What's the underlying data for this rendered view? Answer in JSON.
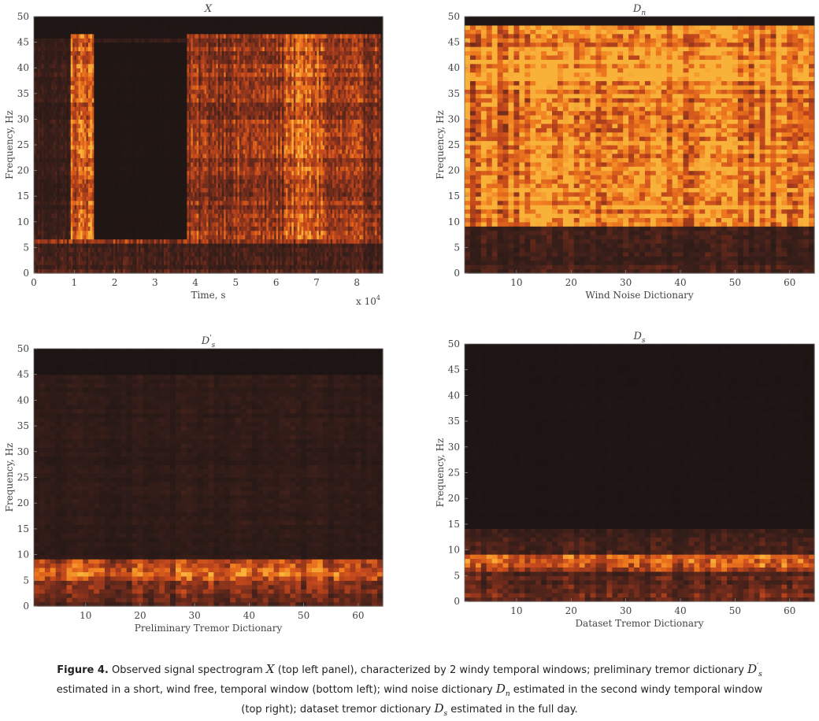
{
  "chart_data": [
    {
      "type": "heatmap",
      "title": "X",
      "xlabel": "Time, s",
      "ylabel": "Frequency, Hz",
      "x_multiplier": "x 10",
      "x_multiplier_exp": "4",
      "xlim": [
        0,
        8.64
      ],
      "ylim": [
        0,
        50
      ],
      "xticks": [
        "0",
        "1",
        "2",
        "3",
        "4",
        "5",
        "6",
        "7",
        "8"
      ],
      "yticks": [
        "0",
        "5",
        "10",
        "15",
        "20",
        "25",
        "30",
        "35",
        "40",
        "45",
        "50"
      ],
      "colormap": [
        "#1c1514",
        "#3a1f1a",
        "#7a2e1c",
        "#c4481c",
        "#f07a1e",
        "#f8b23a"
      ],
      "background": "#1c1514",
      "bands": [
        {
          "y": [
            45.5,
            50
          ],
          "level": 0.02
        },
        {
          "y": [
            6.2,
            7.0
          ],
          "level": 0.55
        },
        {
          "y": [
            0,
            6.2
          ],
          "level": 0.25
        },
        {
          "y": [
            7.0,
            45.5
          ],
          "level": 0.18
        }
      ],
      "windows": [
        {
          "x": [
            0.9,
            1.5
          ],
          "y": [
            7,
            47
          ],
          "level": 0.65,
          "label": ""
        },
        {
          "x": [
            1.5,
            3.8
          ],
          "y": [
            7,
            45
          ],
          "level": 0.03,
          "label": ""
        },
        {
          "x": [
            3.8,
            8.6
          ],
          "y": [
            7,
            47
          ],
          "level": 0.45,
          "label": ""
        },
        {
          "x": [
            6.2,
            7.2
          ],
          "y": [
            7,
            47
          ],
          "level": 0.65,
          "label": ""
        }
      ]
    },
    {
      "type": "heatmap",
      "title": "D",
      "title_sub": "n",
      "xlabel": "Wind Noise Dictionary",
      "ylabel": "Frequency, Hz",
      "xlim": [
        0.5,
        64.5
      ],
      "ylim": [
        0,
        50
      ],
      "xticks": [
        "10",
        "20",
        "30",
        "40",
        "50",
        "60"
      ],
      "yticks": [
        "0",
        "5",
        "10",
        "15",
        "20",
        "25",
        "30",
        "35",
        "40",
        "45",
        "50"
      ],
      "colormap": [
        "#1c1514",
        "#3a1f1a",
        "#7a2e1c",
        "#c4481c",
        "#f07a1e",
        "#f8b23a"
      ],
      "bands": [
        {
          "y": [
            48,
            50
          ],
          "level": 0.02
        },
        {
          "y": [
            9,
            48
          ],
          "level": 0.85
        },
        {
          "y": [
            37,
            44
          ],
          "level": 0.95
        },
        {
          "y": [
            0,
            9
          ],
          "level": 0.22
        }
      ]
    },
    {
      "type": "heatmap",
      "title": "D",
      "title_sub": "s",
      "title_sup": "'",
      "xlabel": "Preliminary Tremor Dictionary",
      "ylabel": "Frequency, Hz",
      "xlim": [
        0.5,
        64.5
      ],
      "ylim": [
        0,
        50
      ],
      "xticks": [
        "10",
        "20",
        "30",
        "40",
        "50",
        "60"
      ],
      "yticks": [
        "0",
        "5",
        "10",
        "15",
        "20",
        "25",
        "30",
        "35",
        "40",
        "45",
        "50"
      ],
      "colormap": [
        "#1c1514",
        "#3a1f1a",
        "#7a2e1c",
        "#c4481c",
        "#f07a1e",
        "#f8b23a"
      ],
      "bands": [
        {
          "y": [
            45,
            50
          ],
          "level": 0.01
        },
        {
          "y": [
            9,
            45
          ],
          "level": 0.12
        },
        {
          "y": [
            5,
            9
          ],
          "level": 0.65
        },
        {
          "y": [
            0,
            5
          ],
          "level": 0.35
        }
      ]
    },
    {
      "type": "heatmap",
      "title": "D",
      "title_sub": "s",
      "xlabel": "Dataset Tremor Dictionary",
      "ylabel": "Frequency, Hz",
      "xlim": [
        0.5,
        64.5
      ],
      "ylim": [
        0,
        50
      ],
      "xticks": [
        "10",
        "20",
        "30",
        "40",
        "50",
        "60"
      ],
      "yticks": [
        "0",
        "5",
        "10",
        "15",
        "20",
        "25",
        "30",
        "35",
        "40",
        "45",
        "50"
      ],
      "colormap": [
        "#1c1514",
        "#3a1f1a",
        "#7a2e1c",
        "#c4481c",
        "#f07a1e",
        "#f8b23a"
      ],
      "bands": [
        {
          "y": [
            14,
            50
          ],
          "level": 0.01
        },
        {
          "y": [
            9,
            14
          ],
          "level": 0.2
        },
        {
          "y": [
            6,
            9
          ],
          "level": 0.6
        },
        {
          "y": [
            0,
            6
          ],
          "level": 0.3
        }
      ]
    }
  ],
  "caption": {
    "label": "Figure 4.",
    "p1": " Observed signal spectrogram ",
    "sym_x": "X",
    "p2": " (top left panel), characterized by 2 windy temporal windows; preliminary tremor dictionary ",
    "sym_ds": "D",
    "sym_ds_sub": "s",
    "sym_ds_sup": "′",
    "p3": " estimated in a short, wind free, temporal window (bottom left); wind noise dictionary ",
    "sym_dn": "D",
    "sym_dn_sub": "n",
    "p4": " estimated in the second windy temporal window (top right); dataset tremor dictionary ",
    "sym_ds2": "D",
    "sym_ds2_sub": "s",
    "p5": " estimated in the full day."
  }
}
